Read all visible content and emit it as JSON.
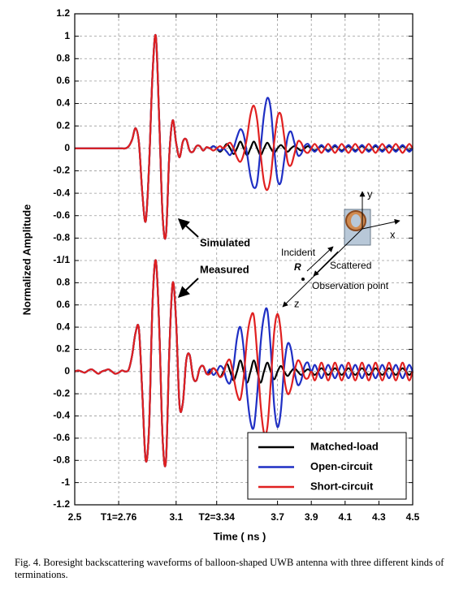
{
  "chart_data": [
    {
      "type": "line",
      "annotation": "Simulated",
      "ylabel": "Normalized Amplitude",
      "ylim": [
        -1,
        1.2
      ],
      "yticks": [
        1.2,
        1,
        0.8,
        0.6,
        0.4,
        0.2,
        0,
        -0.2,
        -0.4,
        -0.6,
        -0.8,
        {
          "value": -1,
          "label": "-1/1"
        }
      ],
      "grid": true,
      "x": [
        2.5,
        2.52,
        2.54,
        2.56,
        2.58,
        2.6,
        2.62,
        2.64,
        2.66,
        2.68,
        2.7,
        2.72,
        2.74,
        2.76,
        2.78,
        2.8,
        2.82,
        2.84,
        2.86,
        2.88,
        2.9,
        2.92,
        2.94,
        2.96,
        2.98,
        3,
        3.02,
        3.04,
        3.06,
        3.08,
        3.1,
        3.12,
        3.14,
        3.16,
        3.18,
        3.2,
        3.22,
        3.24,
        3.26,
        3.28,
        3.3,
        3.32,
        3.34,
        3.36,
        3.38,
        3.4,
        3.42,
        3.44,
        3.46,
        3.48,
        3.5,
        3.52,
        3.54,
        3.56,
        3.58,
        3.6,
        3.62,
        3.64,
        3.66,
        3.68,
        3.7,
        3.72,
        3.74,
        3.76,
        3.78,
        3.8,
        3.82,
        3.84,
        3.86,
        3.88,
        3.9,
        3.92,
        3.94,
        3.96,
        3.98,
        4,
        4.02,
        4.04,
        4.06,
        4.08,
        4.1,
        4.12,
        4.14,
        4.16,
        4.18,
        4.2,
        4.22,
        4.24,
        4.26,
        4.28,
        4.3,
        4.32,
        4.34,
        4.36,
        4.38,
        4.4,
        4.42,
        4.44,
        4.46,
        4.48,
        4.5
      ],
      "series": [
        {
          "color": "#000000",
          "values": [
            0,
            0,
            0,
            0,
            0,
            0,
            0,
            0,
            0,
            0,
            0,
            0,
            0,
            0,
            0,
            0,
            0.02,
            0.08,
            0.18,
            0.05,
            -0.4,
            -0.65,
            -0.15,
            0.65,
            1,
            0.25,
            -0.6,
            -0.77,
            -0.05,
            0.25,
            0.05,
            -0.08,
            0.06,
            0.08,
            -0.02,
            -0.03,
            0.02,
            0.02,
            -0.02,
            0.01,
            0,
            0.02,
            0,
            -0.03,
            0,
            0.04,
            0,
            -0.05,
            0,
            0.06,
            0,
            -0.06,
            0,
            0.06,
            0,
            -0.06,
            0,
            0.05,
            0,
            -0.04,
            0,
            0.03,
            0,
            -0.03,
            0,
            0.02,
            0,
            -0.02,
            0,
            0.02,
            0,
            -0.02,
            0,
            0.02,
            0,
            -0.02,
            0,
            0.02,
            0,
            -0.02,
            0,
            0.02,
            0,
            -0.02,
            0,
            0.02,
            0,
            -0.02,
            0,
            0.02,
            0,
            -0.02,
            0,
            0.02,
            0,
            -0.02,
            0,
            0.02,
            0,
            -0.02,
            0
          ]
        },
        {
          "color": "#1f2fc4",
          "values": [
            0,
            0,
            0,
            0,
            0,
            0,
            0,
            0,
            0,
            0,
            0,
            0,
            0,
            0,
            0,
            0,
            0.02,
            0.08,
            0.18,
            0.05,
            -0.4,
            -0.65,
            -0.15,
            0.65,
            1,
            0.25,
            -0.6,
            -0.77,
            -0.05,
            0.25,
            0.05,
            -0.08,
            0.06,
            0.08,
            -0.02,
            -0.03,
            0.02,
            0.02,
            -0.02,
            0.01,
            0,
            0.02,
            0,
            -0.02,
            0,
            -0.03,
            -0.06,
            0,
            0.1,
            0.17,
            0.12,
            -0.05,
            -0.25,
            -0.35,
            -0.3,
            0,
            0.3,
            0.45,
            0.35,
            0,
            -0.28,
            -0.3,
            -0.1,
            0.1,
            0.15,
            0.05,
            -0.06,
            -0.05,
            0.02,
            0.04,
            0,
            -0.03,
            0,
            0.03,
            0,
            -0.03,
            0,
            0.03,
            0,
            -0.03,
            0,
            0.03,
            0,
            -0.03,
            0,
            0.03,
            0,
            -0.03,
            0,
            0.03,
            0,
            -0.03,
            0,
            0.03,
            0,
            -0.03,
            0,
            0.03,
            0,
            -0.03,
            0
          ]
        },
        {
          "color": "#e02020",
          "values": [
            0,
            0,
            0,
            0,
            0,
            0,
            0,
            0,
            0,
            0,
            0,
            0,
            0,
            0,
            0,
            0,
            0.02,
            0.08,
            0.18,
            0.05,
            -0.4,
            -0.65,
            -0.15,
            0.65,
            1,
            0.25,
            -0.6,
            -0.77,
            -0.05,
            0.25,
            0.05,
            -0.08,
            0.06,
            0.08,
            -0.02,
            -0.03,
            0.02,
            0.02,
            -0.02,
            0.01,
            0,
            -0.02,
            0,
            0.02,
            0,
            0.03,
            0.05,
            0,
            -0.08,
            -0.12,
            -0.05,
            0.1,
            0.3,
            0.38,
            0.25,
            -0.05,
            -0.3,
            -0.37,
            -0.25,
            0.05,
            0.28,
            0.3,
            0.1,
            -0.12,
            -0.15,
            -0.05,
            0.06,
            0.05,
            -0.02,
            -0.04,
            0,
            0.04,
            0,
            -0.04,
            0,
            0.04,
            0,
            -0.04,
            0,
            0.04,
            0,
            -0.04,
            0,
            0.04,
            0,
            -0.04,
            0,
            0.04,
            0,
            -0.04,
            0,
            0.04,
            0,
            -0.04,
            0,
            0.04,
            0,
            -0.04,
            0,
            0.04,
            0
          ]
        }
      ]
    },
    {
      "type": "line",
      "annotation": "Measured",
      "xlabel": "Time ( ns )",
      "xlim": [
        2.5,
        4.5
      ],
      "xticks": [
        2.5,
        {
          "value": 2.76,
          "label": "T1=2.76"
        },
        3.1,
        {
          "value": 3.34,
          "label": "T2=3.34"
        },
        3.7,
        3.9,
        4.1,
        4.3,
        4.5
      ],
      "ylim": [
        -1.2,
        1
      ],
      "yticks": [
        0.8,
        0.6,
        0.4,
        0.2,
        0,
        -0.2,
        -0.4,
        -0.6,
        -0.8,
        -1,
        -1.2
      ],
      "grid": true,
      "legend": "lower right",
      "x": [
        2.5,
        2.52,
        2.54,
        2.56,
        2.58,
        2.6,
        2.62,
        2.64,
        2.66,
        2.68,
        2.7,
        2.72,
        2.74,
        2.76,
        2.78,
        2.8,
        2.82,
        2.84,
        2.86,
        2.88,
        2.9,
        2.92,
        2.94,
        2.96,
        2.98,
        3,
        3.02,
        3.04,
        3.06,
        3.08,
        3.1,
        3.12,
        3.14,
        3.16,
        3.18,
        3.2,
        3.22,
        3.24,
        3.26,
        3.28,
        3.3,
        3.32,
        3.34,
        3.36,
        3.38,
        3.4,
        3.42,
        3.44,
        3.46,
        3.48,
        3.5,
        3.52,
        3.54,
        3.56,
        3.58,
        3.6,
        3.62,
        3.64,
        3.66,
        3.68,
        3.7,
        3.72,
        3.74,
        3.76,
        3.78,
        3.8,
        3.82,
        3.84,
        3.86,
        3.88,
        3.9,
        3.92,
        3.94,
        3.96,
        3.98,
        4,
        4.02,
        4.04,
        4.06,
        4.08,
        4.1,
        4.12,
        4.14,
        4.16,
        4.18,
        4.2,
        4.22,
        4.24,
        4.26,
        4.28,
        4.3,
        4.32,
        4.34,
        4.36,
        4.38,
        4.4,
        4.42,
        4.44,
        4.46,
        4.48,
        4.5
      ],
      "series": [
        {
          "name": "Matched-load",
          "color": "#000000",
          "values": [
            0,
            0.01,
            0,
            -0.01,
            0.01,
            0.02,
            0,
            -0.02,
            0,
            0.01,
            0.02,
            0,
            -0.02,
            -0.01,
            0.01,
            0,
            0.02,
            0.15,
            0.35,
            0.38,
            -0.2,
            -0.8,
            -0.5,
            0.6,
            1,
            0.4,
            -0.6,
            -0.8,
            0.2,
            0.8,
            0.45,
            -0.3,
            -0.28,
            0.1,
            0.15,
            -0.05,
            -0.08,
            0.03,
            0.05,
            -0.02,
            0,
            0.03,
            0,
            -0.05,
            0,
            0.07,
            0,
            -0.08,
            0,
            0.1,
            0,
            -0.1,
            0,
            0.1,
            0,
            -0.1,
            0,
            0.08,
            0,
            -0.07,
            0,
            0.05,
            0,
            -0.04,
            0,
            0.03,
            0,
            -0.03,
            0,
            0.02,
            0,
            -0.03,
            0,
            0.03,
            0,
            -0.03,
            0,
            0.03,
            0,
            -0.03,
            0,
            0.03,
            0,
            -0.03,
            0,
            0.03,
            0,
            -0.03,
            0,
            0.03,
            0,
            -0.03,
            0,
            0.03,
            0,
            -0.03,
            0,
            0.03,
            0,
            -0.03,
            0
          ]
        },
        {
          "name": "Open-circuit",
          "color": "#1f2fc4",
          "values": [
            0,
            0.01,
            0,
            -0.01,
            0.01,
            0.02,
            0,
            -0.02,
            0,
            0.01,
            0.02,
            0,
            -0.02,
            -0.01,
            0.01,
            0,
            0.02,
            0.15,
            0.35,
            0.38,
            -0.2,
            -0.8,
            -0.5,
            0.6,
            1,
            0.4,
            -0.6,
            -0.8,
            0.2,
            0.8,
            0.45,
            -0.3,
            -0.28,
            0.1,
            0.15,
            -0.05,
            -0.08,
            0.03,
            0.05,
            -0.02,
            0.02,
            -0.03,
            0,
            0.05,
            0.02,
            -0.08,
            -0.1,
            0.05,
            0.3,
            0.4,
            0.2,
            -0.2,
            -0.45,
            -0.5,
            -0.2,
            0.25,
            0.5,
            0.55,
            0.2,
            -0.3,
            -0.5,
            -0.35,
            0.05,
            0.25,
            0.2,
            0,
            -0.12,
            -0.08,
            0.05,
            0.08,
            0,
            0.06,
            0,
            -0.06,
            0,
            0.06,
            0,
            -0.06,
            0,
            0.06,
            0,
            -0.06,
            0,
            0.06,
            0,
            -0.06,
            0,
            0.06,
            0,
            -0.06,
            0,
            0.06,
            0,
            -0.06,
            0,
            0.06,
            0,
            -0.06,
            0,
            0.06,
            0
          ]
        },
        {
          "name": "Short-circuit",
          "color": "#e02020",
          "values": [
            0,
            0.01,
            0,
            -0.01,
            0.01,
            0.02,
            0,
            -0.02,
            0,
            0.01,
            0.02,
            0,
            -0.02,
            -0.01,
            0.01,
            0,
            0.02,
            0.15,
            0.35,
            0.38,
            -0.2,
            -0.8,
            -0.5,
            0.6,
            1,
            0.4,
            -0.6,
            -0.8,
            0.2,
            0.8,
            0.45,
            -0.3,
            -0.28,
            0.1,
            0.15,
            -0.05,
            -0.08,
            0.03,
            0.05,
            -0.02,
            -0.02,
            0.03,
            0,
            -0.05,
            -0.02,
            0.08,
            0.1,
            -0.05,
            -0.2,
            -0.25,
            -0.05,
            0.3,
            0.48,
            0.5,
            0.15,
            -0.3,
            -0.55,
            -0.5,
            -0.1,
            0.35,
            0.52,
            0.35,
            -0.05,
            -0.2,
            -0.15,
            0,
            0.1,
            0.06,
            -0.05,
            -0.06,
            0,
            -0.08,
            0,
            0.08,
            0,
            -0.08,
            0,
            0.08,
            0,
            -0.08,
            0,
            0.08,
            0,
            -0.08,
            0,
            0.08,
            0,
            -0.08,
            0,
            0.08,
            0,
            -0.08,
            0,
            0.08,
            0,
            -0.08,
            0,
            0.08,
            0,
            -0.08,
            0
          ]
        }
      ]
    }
  ],
  "inset": {
    "y_axis": "y",
    "x_axis": "x",
    "z_axis": "z",
    "incident": "Incident",
    "scattered": "Scattered",
    "range": "R",
    "observation": "Observation point"
  },
  "caption": "Fig. 4.   Boresight backscattering waveforms of balloon-shaped UWB antenna with three different kinds of terminations."
}
